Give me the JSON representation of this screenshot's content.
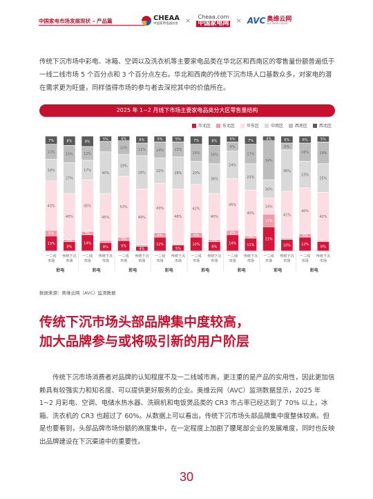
{
  "header": {
    "section_title": "中国家电市场发展现状 – 产品篇",
    "logos": {
      "cheaa_name": "CHEAA",
      "cheaa_sub": "中国家用电器协会",
      "jjw_url": "Cheaa.com",
      "jjw_cn": "中国家电网",
      "avc_mark": "AVC",
      "avc_cn": "奥维云网",
      "avc_sub": "ALL VIEW CLOUD",
      "separator": "×"
    }
  },
  "intro_paragraph": "传统下沉市场中彩电、冰箱、空调以及洗衣机等主要家电品类在华北区和西南区的零售量份额普遍低于一线二线市场 5 个百分点和 3 个百分点左右。华北和西南的传统下沉市场人口基数众多，对家电的潜在需求更为旺盛，同样值得市场的参与者去深挖其中的价值所在。",
  "chart_data": {
    "type": "bar",
    "stacked": "percent",
    "title": "2025 年 1~2 月线下市场主要家电品类分大区零售量结构",
    "series_names": [
      "华北区",
      "东北区",
      "华东区",
      "中南区",
      "西南区",
      "西北区"
    ],
    "colors": {
      "华北区": "#d6153a",
      "东北区": "#f29aaa",
      "华东区": "#fbdde3",
      "中南区": "#d9d9d9",
      "西南区": "#bdbdbd",
      "西北区": "#5a5a5a"
    },
    "categories": [
      {
        "label": [
          "一二线",
          "市场"
        ],
        "group": "彩电"
      },
      {
        "label": [
          "传统下沉",
          "市场"
        ],
        "group": "彩电"
      },
      {
        "label": [
          "一二线",
          "市场"
        ],
        "group": "彩电"
      },
      {
        "label": [
          "传统下沉",
          "市场"
        ],
        "group": "彩电"
      },
      {
        "label": [
          "一二线",
          "市场"
        ],
        "group": "彩电"
      },
      {
        "label": [
          "传统下沉",
          "市场"
        ],
        "group": "彩电"
      },
      {
        "label": [
          "一二线",
          "市场"
        ],
        "group": "彩电"
      },
      {
        "label": [
          "传统下沉",
          "市场"
        ],
        "group": "彩电"
      },
      {
        "label": [
          "一二线",
          "市场"
        ],
        "group": "彩电"
      },
      {
        "label": [
          "传统下沉",
          "市场"
        ],
        "group": "彩电"
      },
      {
        "label": [
          "一二线",
          "市场"
        ],
        "group": "彩电"
      },
      {
        "label": [
          "传统下沉",
          "市场"
        ],
        "group": "彩电"
      },
      {
        "label": [
          "一二线",
          "市场"
        ],
        "group": "彩电"
      },
      {
        "label": [
          "传统下沉",
          "市场"
        ],
        "group": "彩电"
      },
      {
        "label": [
          "一二线",
          "市场"
        ],
        "group": "彩电"
      },
      {
        "label": [
          "传统下沉",
          "市场"
        ],
        "group": "彩电"
      }
    ],
    "group_labels": [
      "彩电",
      "彩电",
      "彩电",
      "彩电",
      "彩电",
      "彩电",
      "彩电",
      "彩电"
    ],
    "values": [
      [
        13,
        5,
        43,
        19,
        13,
        7
      ],
      [
        8,
        2,
        40,
        27,
        15,
        8
      ],
      [
        14,
        3,
        45,
        17,
        12,
        9
      ],
      [
        8,
        2,
        45,
        40,
        10,
        5
      ],
      [
        9,
        3,
        53,
        19,
        12,
        4
      ],
      [
        4,
        1,
        49,
        29,
        11,
        6
      ],
      [
        12,
        4,
        43,
        22,
        14,
        5
      ],
      [
        5,
        1,
        48,
        28,
        13,
        5
      ],
      [
        12,
        4,
        42,
        20,
        15,
        7
      ],
      [
        8,
        2,
        40,
        26,
        16,
        8
      ],
      [
        14,
        4,
        45,
        24,
        8,
        5
      ],
      [
        11,
        2,
        40,
        23,
        17,
        7
      ],
      [
        21,
        11,
        14,
        16,
        34,
        4
      ],
      [
        10,
        1,
        41,
        36,
        6,
        6
      ],
      [
        12,
        3,
        40,
        23,
        16,
        6
      ],
      [
        8,
        1,
        42,
        25,
        19,
        5
      ]
    ],
    "labels": [
      [
        "13%",
        "5%",
        "43%",
        "19%",
        "13%",
        "7%"
      ],
      [
        "8%",
        "2%",
        "40%",
        "27%",
        "15%",
        "8%"
      ],
      [
        "14%",
        "3%",
        "45%",
        "17%",
        "12%",
        "9%"
      ],
      [
        "8%",
        "",
        "45%",
        "40%",
        "",
        "5%"
      ],
      [
        "9%",
        "3%",
        "53%",
        "19%",
        "12%",
        "4%"
      ],
      [
        "4%",
        "",
        "49%",
        "29%",
        "11%",
        "6%"
      ],
      [
        "12%",
        "4%",
        "43%",
        "22%",
        "14%",
        "5%"
      ],
      [
        "5%",
        "",
        "48%",
        "28%",
        "13%",
        "5%"
      ],
      [
        "12%",
        "4%",
        "42%",
        "20%",
        "15%",
        "7%"
      ],
      [
        "8%",
        "2%",
        "40%",
        "26%",
        "16%",
        "8%"
      ],
      [
        "14%",
        "4%",
        "45%",
        "24%",
        "8%",
        "5%"
      ],
      [
        "11%",
        "2%",
        "40%",
        "23%",
        "17%",
        "7%"
      ],
      [
        "21%",
        "11%",
        "14%",
        "16%",
        "34%",
        "4%"
      ],
      [
        "10%",
        "",
        "41%",
        "36%",
        "6%",
        "6%"
      ],
      [
        "12%",
        "3%",
        "40%",
        "23%",
        "16%",
        "6%"
      ],
      [
        "8%",
        "",
        "42%",
        "25%",
        "19%",
        "5%"
      ]
    ],
    "ylim": [
      0,
      100
    ],
    "legend_position": "top-right"
  },
  "source": "数据来源：奥维云网（AVC）监测数据",
  "heading": {
    "line1": "传统下沉市场头部品牌集中度较高，",
    "line2": "加大品牌参与或将吸引新的用户阶层"
  },
  "body_paragraph": "传统下沉市场消费者对品牌的认知程度不及一二线城市高，更注重的是产品的实用性，因此更加信赖具有较强实力和知名度、可以提供更好服务的企业。奥维云网（AVC）监测数据显示，2025 年 1~2 月彩电、空调、电储水热水器、洗碗机和电饭煲品类的 CR3 市占率已经达到了 70% 以上，冰箱、洗衣机的 CR3 也超过了 60%。从数据上可以看出，传统下沉市场头部品牌集中度整体较高。但是也要看到，头部品牌市场份额的高度集中，在一定程度上加剧了腰尾部企业的发展难度，同时也反映出品牌建设在下沉渠道中的重要性。",
  "page_number": "30"
}
